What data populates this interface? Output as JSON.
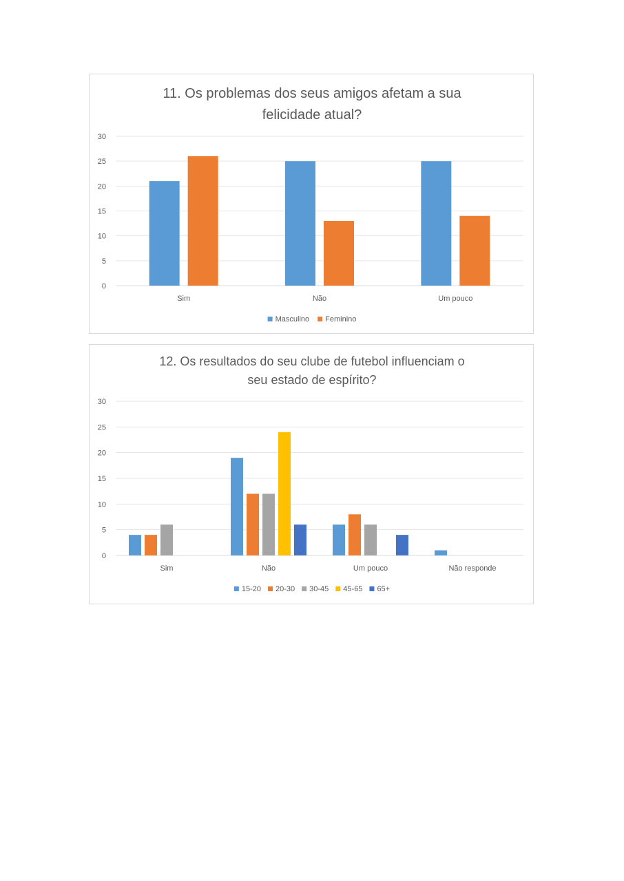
{
  "chart_data": [
    {
      "type": "bar",
      "title_lines": [
        "11. Os problemas dos seus amigos afetam a sua",
        "felicidade atual?"
      ],
      "categories": [
        "Sim",
        "Não",
        "Um pouco"
      ],
      "series": [
        {
          "name": "Masculino",
          "values": [
            21,
            25,
            25
          ],
          "color": "#5b9bd5"
        },
        {
          "name": "Feminino",
          "values": [
            26,
            13,
            14
          ],
          "color": "#ed7d31"
        }
      ],
      "ylim": [
        0,
        30
      ],
      "yticks": [
        "0",
        "5",
        "10",
        "15",
        "20",
        "25",
        "30"
      ],
      "grid": true,
      "legend": "bottom"
    },
    {
      "type": "bar",
      "title_lines": [
        "12. Os resultados do seu clube de futebol influenciam o",
        "seu estado de espírito?"
      ],
      "categories": [
        "Sim",
        "Não",
        "Um pouco",
        "Não responde"
      ],
      "series": [
        {
          "name": "15-20",
          "values": [
            4,
            19,
            6,
            1
          ],
          "color": "#5b9bd5"
        },
        {
          "name": "20-30",
          "values": [
            4,
            12,
            8,
            0
          ],
          "color": "#ed7d31"
        },
        {
          "name": "30-45",
          "values": [
            6,
            12,
            6,
            0
          ],
          "color": "#a5a5a5"
        },
        {
          "name": "45-65",
          "values": [
            0,
            24,
            0,
            0
          ],
          "color": "#ffc000"
        },
        {
          "name": "65+",
          "values": [
            0,
            6,
            4,
            0
          ],
          "color": "#4472c4"
        }
      ],
      "ylim": [
        0,
        30
      ],
      "yticks": [
        "0",
        "5",
        "10",
        "15",
        "20",
        "25",
        "30"
      ],
      "grid": true,
      "legend": "bottom"
    }
  ]
}
